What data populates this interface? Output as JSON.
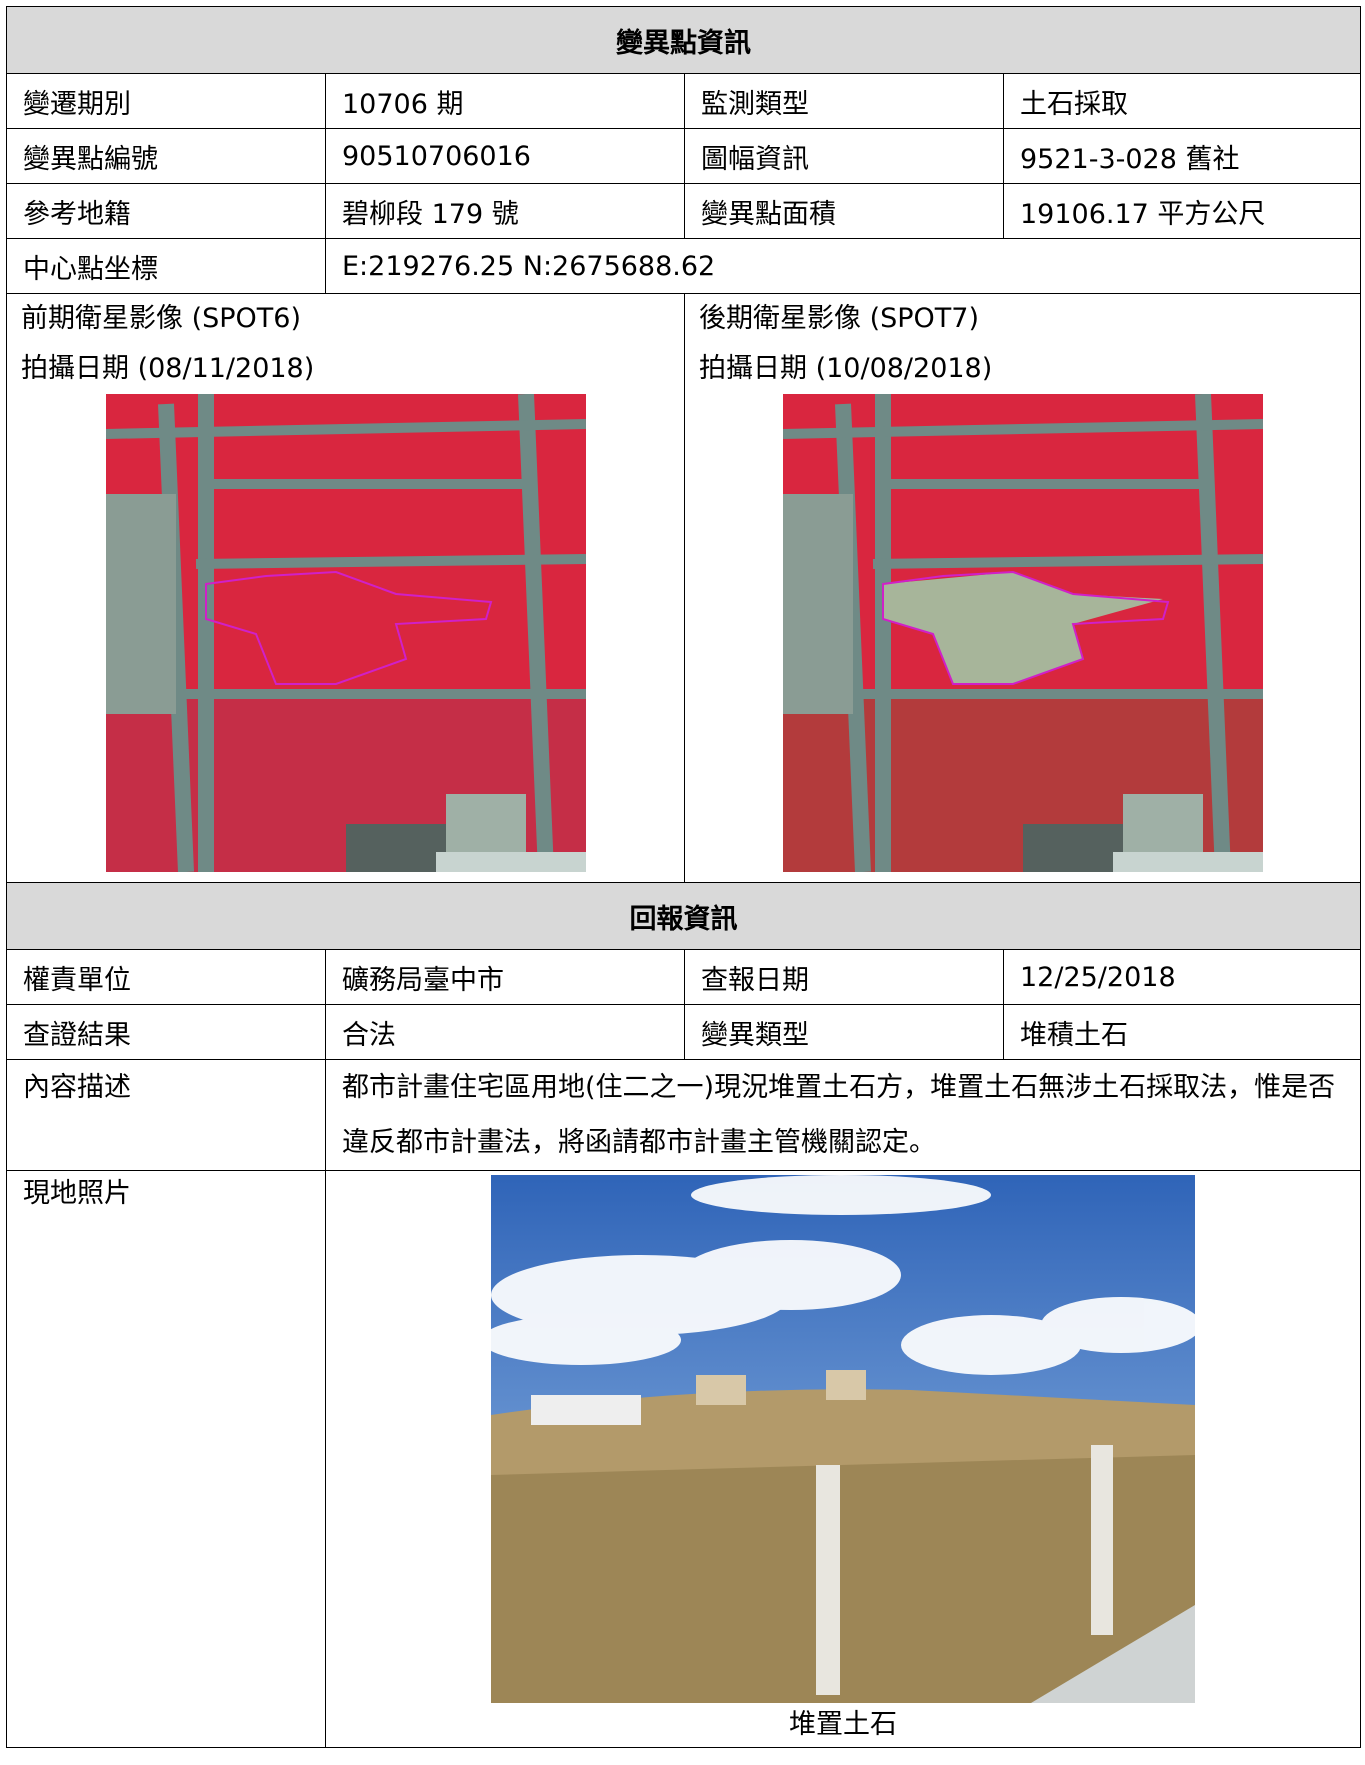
{
  "change_info": {
    "title": "變異點資訊",
    "rows": [
      [
        "變遷期別",
        "10706 期",
        "監測類型",
        "土石採取"
      ],
      [
        "變異點編號",
        "90510706016",
        "圖幅資訊",
        "9521-3-028 舊社"
      ],
      [
        "參考地籍",
        "碧柳段 179 號",
        "變異點面積",
        "19106.17 平方公尺"
      ]
    ],
    "center_label": "中心點坐標",
    "center_value": "E:219276.25 N:2675688.62",
    "before_title": "前期衛星影像 (SPOT6)",
    "before_date": "拍攝日期 (08/11/2018)",
    "after_title": "後期衛星影像 (SPOT7)",
    "after_date": "拍攝日期 (10/08/2018)"
  },
  "report_info": {
    "title": "回報資訊",
    "rows": [
      [
        "權責單位",
        "礦務局臺中市",
        "查報日期",
        "12/25/2018"
      ],
      [
        "查證結果",
        "合法",
        "變異類型",
        "堆積土石"
      ]
    ],
    "description_label": "內容描述",
    "description": "都市計畫住宅區用地(住二之一)現況堆置土石方，堆置土石無涉土石採取法，惟是否違反都市計畫法，將函請都市計畫主管機關認定。",
    "photo_label": "現地照片",
    "photo_caption": "堆置土石"
  }
}
